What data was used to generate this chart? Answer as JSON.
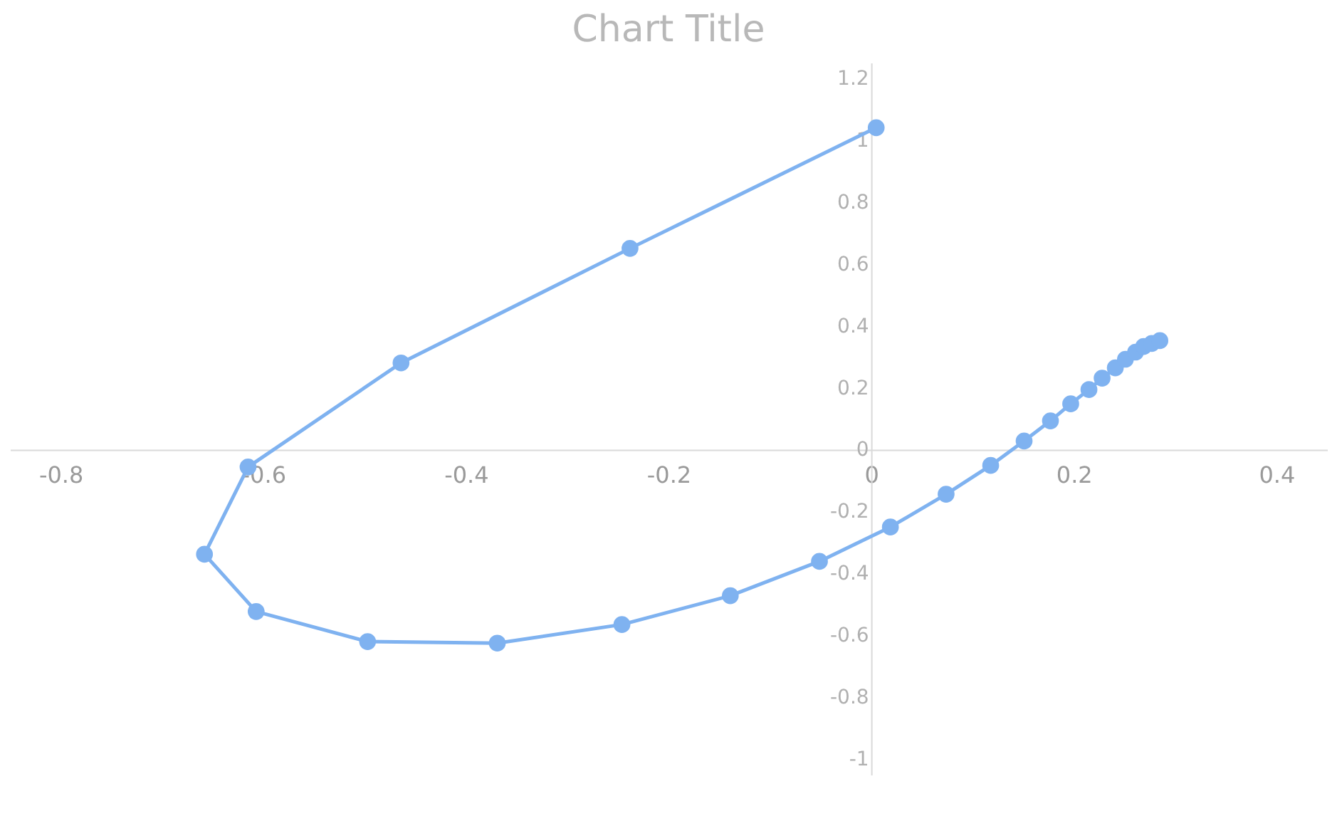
{
  "chart_data": {
    "type": "line",
    "title": "Chart Title",
    "marker": "circle",
    "grid": false,
    "x": [
      0.005,
      -0.238,
      -0.464,
      -0.615,
      -0.658,
      -0.607,
      -0.497,
      -0.369,
      -0.246,
      -0.139,
      -0.051,
      0.019,
      0.074,
      0.118,
      0.151,
      0.177,
      0.197,
      0.215,
      0.228,
      0.241,
      0.251,
      0.261,
      0.269,
      0.277,
      0.285
    ],
    "series": [
      {
        "color": "#7fb2f0",
        "values": [
          1.04,
          0.65,
          0.28,
          -0.056,
          -0.338,
          -0.523,
          -0.62,
          -0.625,
          -0.565,
          -0.472,
          -0.361,
          -0.25,
          -0.144,
          -0.051,
          0.028,
          0.093,
          0.148,
          0.194,
          0.231,
          0.264,
          0.292,
          0.315,
          0.333,
          0.343,
          0.352
        ]
      }
    ],
    "xlim": [
      -0.85,
      0.45
    ],
    "xticks": [
      -0.8,
      -0.6,
      -0.4,
      -0.2,
      0,
      0.2,
      0.4
    ],
    "ylim": [
      -1.05,
      1.25
    ],
    "yticks": [
      -1,
      -0.8,
      -0.6,
      -0.4,
      -0.2,
      0,
      0.2,
      0.4,
      0.6,
      0.8,
      1,
      1.2
    ]
  }
}
